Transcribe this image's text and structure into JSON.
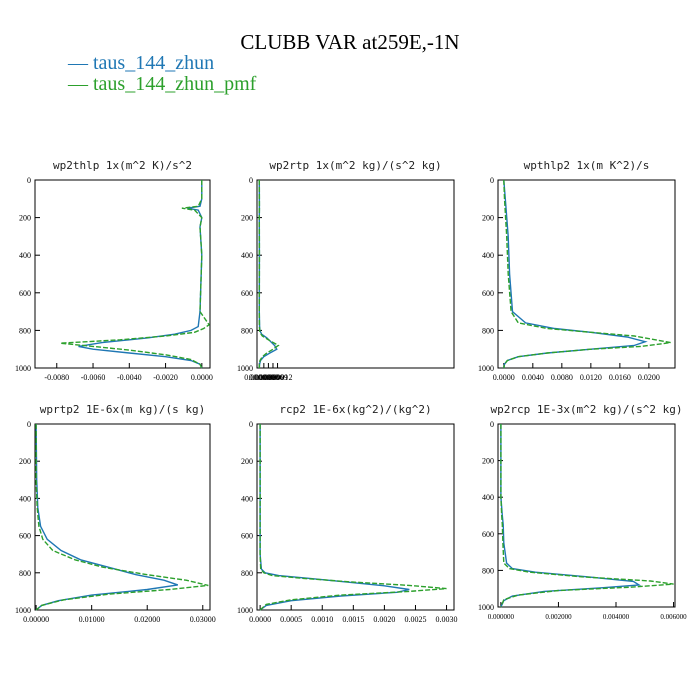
{
  "title": "CLUBB VAR at259E,-1N",
  "legend": [
    {
      "label": "taus_144_zhun",
      "color": "#1f77b4",
      "style": "solid"
    },
    {
      "label": "taus_144_zhun_pmf",
      "color": "#2ca02c",
      "style": "dashed"
    }
  ],
  "chart_data": [
    {
      "type": "line",
      "title": "wp2thlp   1x(m^2 K)/s^2",
      "xlim": [
        -0.0092,
        0.00045
      ],
      "ylim": [
        1000,
        0
      ],
      "xticks": [
        -0.008,
        -0.006,
        -0.004,
        -0.002,
        0.0
      ],
      "xtick_labels": [
        "-0.0080",
        "-0.0060",
        "-0.0040",
        "-0.0020",
        "0.0000"
      ],
      "yticks": [
        0,
        200,
        400,
        600,
        800,
        1000
      ],
      "ytick_labels": [
        "0",
        "200",
        "400",
        "600",
        "800",
        "1000"
      ],
      "series": [
        {
          "name": "taus_144_zhun",
          "points": [
            [
              0,
              0
            ],
            [
              0,
              100
            ],
            [
              -0.0001,
              140
            ],
            [
              -0.0008,
              150
            ],
            [
              -0.0002,
              160
            ],
            [
              0,
              200
            ],
            [
              -0.0001,
              250
            ],
            [
              0,
              400
            ],
            [
              -0.0001,
              700
            ],
            [
              -0.0002,
              780
            ],
            [
              -0.0006,
              800
            ],
            [
              -0.0015,
              820
            ],
            [
              -0.003,
              840
            ],
            [
              -0.0055,
              865
            ],
            [
              -0.0068,
              885
            ],
            [
              -0.006,
              900
            ],
            [
              -0.004,
              920
            ],
            [
              -0.002,
              940
            ],
            [
              -0.0006,
              960
            ],
            [
              -0.0001,
              980
            ],
            [
              0,
              1000
            ]
          ]
        },
        {
          "name": "taus_144_zhun_pmf",
          "points": [
            [
              0,
              0
            ],
            [
              0,
              100
            ],
            [
              -0.0002,
              140
            ],
            [
              -0.0011,
              150
            ],
            [
              -0.0004,
              160
            ],
            [
              0,
              200
            ],
            [
              -0.0001,
              250
            ],
            [
              0,
              400
            ],
            [
              -0.0001,
              700
            ],
            [
              0.0004,
              770
            ],
            [
              0.0001,
              790
            ],
            [
              -0.0004,
              810
            ],
            [
              -0.002,
              830
            ],
            [
              -0.0045,
              850
            ],
            [
              -0.0078,
              868
            ],
            [
              -0.006,
              885
            ],
            [
              -0.004,
              905
            ],
            [
              -0.002,
              930
            ],
            [
              -0.0006,
              955
            ],
            [
              -0.0001,
              980
            ],
            [
              0,
              1000
            ]
          ]
        }
      ]
    },
    {
      "type": "line",
      "title": "wp2rtp   1x(m^2 kg)/(s^2 kg)",
      "xlim": [
        -1.5e-06,
        0.000128
      ],
      "ylim": [
        1000,
        0
      ],
      "xticks": [
        0,
        3e-06,
        6e-06,
        9e-06,
        1.2e-05
      ],
      "xtick_labels": [
        "0.000000",
        "0.000003",
        "0.000006",
        "0.000009",
        "0.000012"
      ],
      "yticks": [
        0,
        200,
        400,
        600,
        800,
        1000
      ],
      "ytick_labels": [
        "0",
        "200",
        "400",
        "600",
        "800",
        "1000"
      ],
      "series": [
        {
          "name": "taus_144_zhun",
          "points": [
            [
              0,
              0
            ],
            [
              1e-07,
              150
            ],
            [
              0,
              200
            ],
            [
              1e-07,
              400
            ],
            [
              0,
              700
            ],
            [
              2e-07,
              780
            ],
            [
              4e-07,
              800
            ],
            [
              1.5e-06,
              820
            ],
            [
              5e-06,
              840
            ],
            [
              1e-05,
              880
            ],
            [
              1.15e-05,
              900
            ],
            [
              7e-06,
              920
            ],
            [
              3e-06,
              940
            ],
            [
              8e-07,
              960
            ],
            [
              2e-07,
              980
            ],
            [
              0,
              1000
            ]
          ]
        },
        {
          "name": "taus_144_zhun_pmf",
          "points": [
            [
              0,
              0
            ],
            [
              1e-07,
              150
            ],
            [
              0,
              200
            ],
            [
              1e-07,
              400
            ],
            [
              0,
              700
            ],
            [
              1e-07,
              780
            ],
            [
              4e-07,
              810
            ],
            [
              2e-06,
              830
            ],
            [
              6e-06,
              850
            ],
            [
              1.25e-05,
              880
            ],
            [
              9e-06,
              900
            ],
            [
              5e-06,
              920
            ],
            [
              2e-06,
              940
            ],
            [
              5e-07,
              960
            ],
            [
              1e-07,
              980
            ],
            [
              0,
              1000
            ]
          ]
        }
      ]
    },
    {
      "type": "line",
      "title": "wpthlp2   1x(m K^2)/s",
      "xlim": [
        -0.0008,
        0.0236
      ],
      "ylim": [
        1000,
        0
      ],
      "xticks": [
        0,
        0.004,
        0.008,
        0.012,
        0.016,
        0.02
      ],
      "xtick_labels": [
        "0.0000",
        "0.0040",
        "0.0080",
        "0.0120",
        "0.0160",
        "0.0200"
      ],
      "yticks": [
        0,
        200,
        400,
        600,
        800,
        1000
      ],
      "ytick_labels": [
        "0",
        "200",
        "400",
        "600",
        "800",
        "1000"
      ],
      "series": [
        {
          "name": "taus_144_zhun",
          "points": [
            [
              0,
              0
            ],
            [
              0.0002,
              100
            ],
            [
              0.0006,
              300
            ],
            [
              0.0008,
              500
            ],
            [
              0.0012,
              700
            ],
            [
              0.003,
              760
            ],
            [
              0.007,
              790
            ],
            [
              0.012,
              810
            ],
            [
              0.017,
              835
            ],
            [
              0.0195,
              860
            ],
            [
              0.018,
              880
            ],
            [
              0.012,
              900
            ],
            [
              0.006,
              920
            ],
            [
              0.002,
              940
            ],
            [
              0.0005,
              960
            ],
            [
              0.0001,
              980
            ],
            [
              0,
              1000
            ]
          ]
        },
        {
          "name": "taus_144_zhun_pmf",
          "points": [
            [
              0,
              0
            ],
            [
              0.0001,
              100
            ],
            [
              0.0004,
              300
            ],
            [
              0.0006,
              500
            ],
            [
              0.001,
              700
            ],
            [
              0.002,
              760
            ],
            [
              0.006,
              790
            ],
            [
              0.012,
              810
            ],
            [
              0.018,
              830
            ],
            [
              0.023,
              865
            ],
            [
              0.019,
              885
            ],
            [
              0.012,
              900
            ],
            [
              0.006,
              920
            ],
            [
              0.002,
              940
            ],
            [
              0.0005,
              960
            ],
            [
              0.0001,
              980
            ],
            [
              0,
              1000
            ]
          ]
        }
      ]
    },
    {
      "type": "line",
      "title": "wprtp2   1E-6x(m kg)/(s kg)",
      "xlim": [
        -0.0002,
        0.0313
      ],
      "ylim": [
        1000,
        0
      ],
      "xticks": [
        0,
        0.01,
        0.02,
        0.03
      ],
      "xtick_labels": [
        "0.00000",
        "0.01000",
        "0.02000",
        "0.03000"
      ],
      "yticks": [
        0,
        200,
        400,
        600,
        800,
        1000
      ],
      "ytick_labels": [
        "0",
        "200",
        "400",
        "600",
        "800",
        "1000"
      ],
      "series": [
        {
          "name": "taus_144_zhun",
          "points": [
            [
              0,
              0
            ],
            [
              0.0001,
              300
            ],
            [
              0.0003,
              450
            ],
            [
              0.0008,
              550
            ],
            [
              0.002,
              620
            ],
            [
              0.0045,
              680
            ],
            [
              0.008,
              730
            ],
            [
              0.013,
              770
            ],
            [
              0.018,
              810
            ],
            [
              0.023,
              840
            ],
            [
              0.0255,
              865
            ],
            [
              0.02,
              890
            ],
            [
              0.01,
              920
            ],
            [
              0.004,
              950
            ],
            [
              0.001,
              975
            ],
            [
              0,
              1000
            ]
          ]
        },
        {
          "name": "taus_144_zhun_pmf",
          "points": [
            [
              0,
              0
            ],
            [
              0,
              300
            ],
            [
              0.0002,
              450
            ],
            [
              0.0005,
              550
            ],
            [
              0.0012,
              620
            ],
            [
              0.003,
              680
            ],
            [
              0.007,
              730
            ],
            [
              0.012,
              770
            ],
            [
              0.02,
              810
            ],
            [
              0.027,
              840
            ],
            [
              0.031,
              868
            ],
            [
              0.024,
              890
            ],
            [
              0.013,
              915
            ],
            [
              0.005,
              945
            ],
            [
              0.001,
              975
            ],
            [
              0,
              1000
            ]
          ]
        }
      ]
    },
    {
      "type": "line",
      "title": "rcp2   1E-6x(kg^2)/(kg^2)",
      "xlim": [
        -5e-05,
        0.00312
      ],
      "ylim": [
        1000,
        0
      ],
      "xticks": [
        0,
        0.0005,
        0.001,
        0.0015,
        0.002,
        0.0025,
        0.003
      ],
      "xtick_labels": [
        "0.0000",
        "0.0005",
        "0.0010",
        "0.0015",
        "0.0020",
        "0.0025",
        "0.0030"
      ],
      "yticks": [
        0,
        200,
        400,
        600,
        800,
        1000
      ],
      "ytick_labels": [
        "0",
        "200",
        "400",
        "600",
        "800",
        "1000"
      ],
      "series": [
        {
          "name": "taus_144_zhun",
          "points": [
            [
              0,
              0
            ],
            [
              0,
              700
            ],
            [
              2e-05,
              780
            ],
            [
              8e-05,
              800
            ],
            [
              0.0003,
              815
            ],
            [
              0.0008,
              830
            ],
            [
              0.0014,
              850
            ],
            [
              0.002,
              870
            ],
            [
              0.0024,
              890
            ],
            [
              0.0022,
              905
            ],
            [
              0.0013,
              925
            ],
            [
              0.0005,
              950
            ],
            [
              0.0001,
              975
            ],
            [
              0,
              1000
            ]
          ]
        },
        {
          "name": "taus_144_zhun_pmf",
          "points": [
            [
              0,
              0
            ],
            [
              0,
              700
            ],
            [
              1e-05,
              780
            ],
            [
              6e-05,
              800
            ],
            [
              0.0002,
              815
            ],
            [
              0.0007,
              830
            ],
            [
              0.0015,
              850
            ],
            [
              0.0024,
              868
            ],
            [
              0.003,
              885
            ],
            [
              0.0024,
              900
            ],
            [
              0.0013,
              920
            ],
            [
              0.0005,
              945
            ],
            [
              0.0001,
              970
            ],
            [
              0,
              1000
            ]
          ]
        }
      ]
    },
    {
      "type": "line",
      "title": "wp2rcp   1E-3x(m^2 kg)/(s^2 kg)",
      "xlim": [
        -0.0001,
        0.00605
      ],
      "ylim": [
        1000,
        0
      ],
      "xticks": [
        0,
        0.002,
        0.004,
        0.006
      ],
      "xtick_labels": [
        "0.000000",
        "0.002000",
        "0.004000",
        "0.006000"
      ],
      "yticks": [
        0,
        200,
        400,
        600,
        800,
        1000
      ],
      "ytick_labels": [
        "0",
        "200",
        "400",
        "600",
        "800",
        "1000"
      ],
      "series": [
        {
          "name": "taus_144_zhun",
          "points": [
            [
              0,
              0
            ],
            [
              0,
              400
            ],
            [
              5e-05,
              500
            ],
            [
              8e-05,
              550
            ],
            [
              0.0001,
              650
            ],
            [
              0.0002,
              760
            ],
            [
              0.0004,
              790
            ],
            [
              0.0012,
              810
            ],
            [
              0.003,
              835
            ],
            [
              0.0046,
              860
            ],
            [
              0.0048,
              880
            ],
            [
              0.0035,
              895
            ],
            [
              0.0015,
              915
            ],
            [
              0.0004,
              940
            ],
            [
              0.0001,
              965
            ],
            [
              0,
              1000
            ]
          ]
        },
        {
          "name": "taus_144_zhun_pmf",
          "points": [
            [
              0,
              0
            ],
            [
              0,
              400
            ],
            [
              3e-05,
              500
            ],
            [
              5e-05,
              550
            ],
            [
              7e-05,
              650
            ],
            [
              0.0001,
              760
            ],
            [
              0.0003,
              790
            ],
            [
              0.001,
              810
            ],
            [
              0.0028,
              835
            ],
            [
              0.0052,
              858
            ],
            [
              0.006,
              875
            ],
            [
              0.0045,
              892
            ],
            [
              0.002,
              910
            ],
            [
              0.0006,
              935
            ],
            [
              0.0001,
              960
            ],
            [
              0,
              1000
            ]
          ]
        }
      ]
    }
  ]
}
